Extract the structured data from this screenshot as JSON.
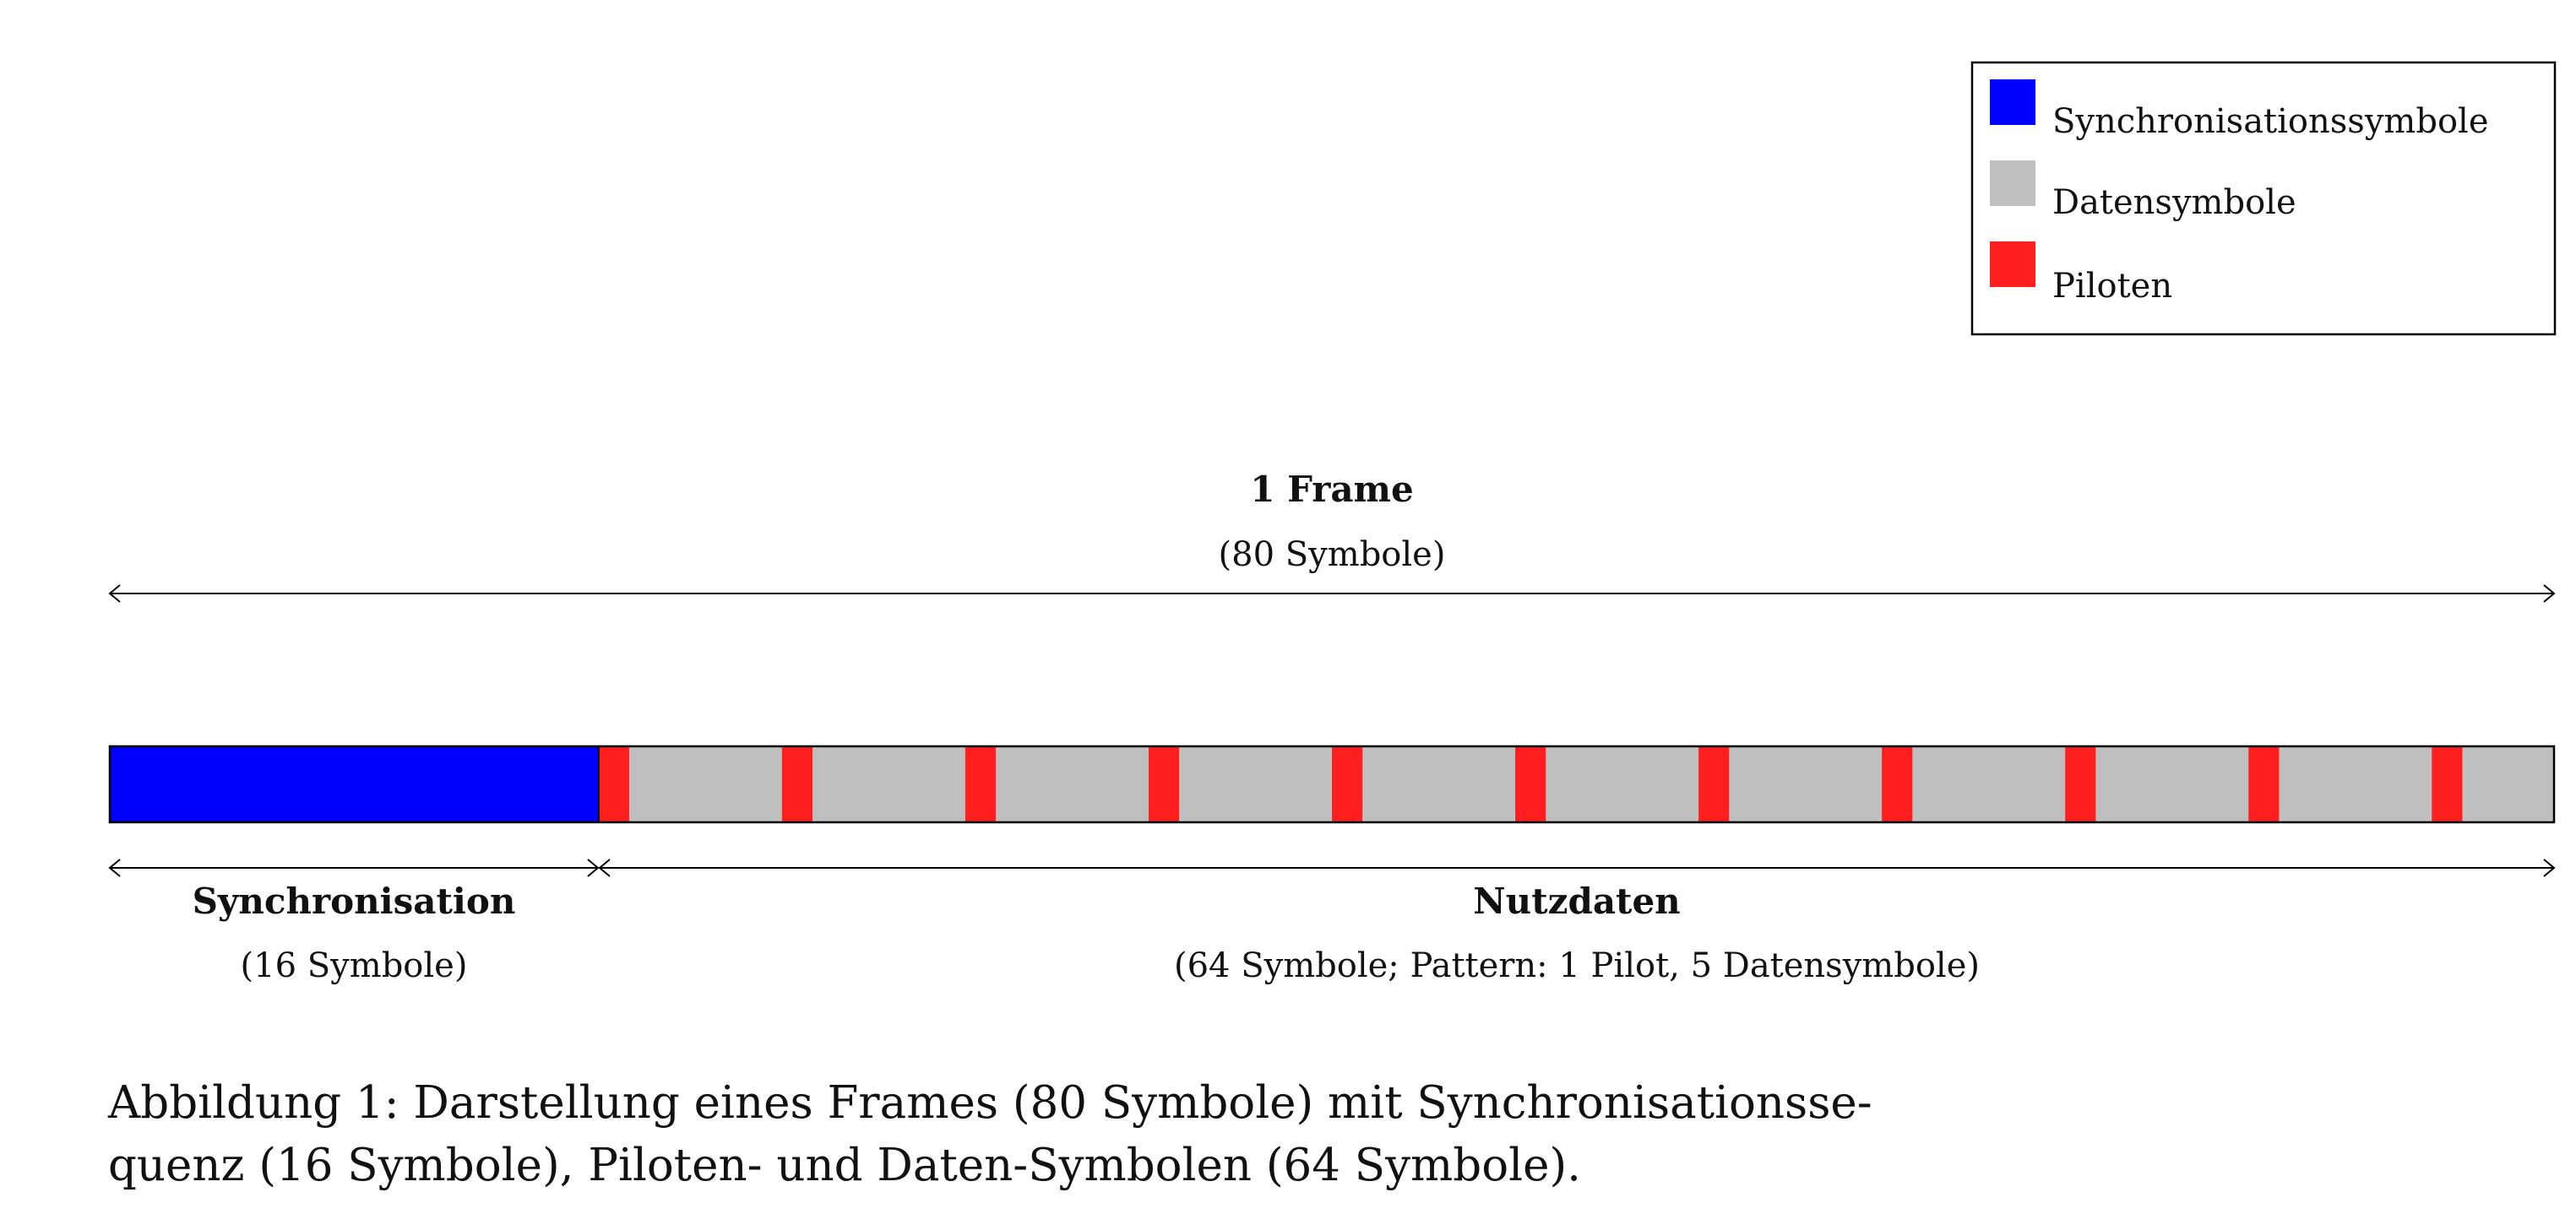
{
  "colors": {
    "sync": "#0000ff",
    "data": "#bfbfbf",
    "pilot": "#ff1f1f",
    "stroke": "#000000"
  },
  "legend": {
    "items": [
      {
        "label": "Synchronisationssymbole",
        "color": "#0000ff"
      },
      {
        "label": "Datensymbole",
        "color": "#bfbfbf"
      },
      {
        "label": "Piloten",
        "color": "#ff1f1f"
      }
    ]
  },
  "frame": {
    "title": "1 Frame",
    "subtitle": "(80 Symbole)",
    "total_symbols": 80,
    "sync_symbols": 16,
    "payload_symbols": 64,
    "pilot_period": 6
  },
  "sync_section": {
    "title": "Synchronisation",
    "subtitle": "(16 Symbole)"
  },
  "payload_section": {
    "title": "Nutzdaten",
    "subtitle": "(64 Symbole; Pattern: 1 Pilot, 5 Datensymbole)"
  },
  "caption": "Abbildung 1: Darstellung eines Frames (80 Symbole) mit Synchronisationsse-\nquenz (16 Symbole), Piloten- und Daten-Symbolen (64 Symbole)."
}
